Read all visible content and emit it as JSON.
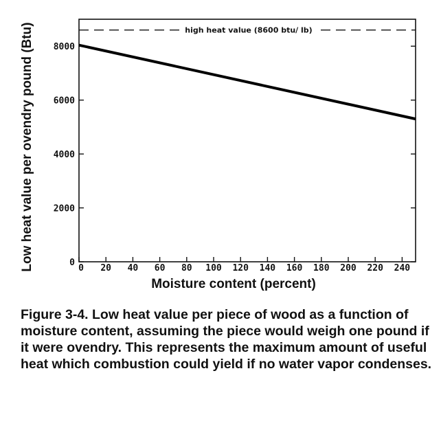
{
  "chart_data": {
    "type": "line",
    "xlabel": "Moisture content (percent)",
    "ylabel": "Low heat value per ovendry pound (Btu)",
    "xlim": [
      0,
      250
    ],
    "ylim": [
      0,
      9000
    ],
    "x_ticks": [
      0,
      20,
      40,
      60,
      80,
      100,
      120,
      140,
      160,
      180,
      200,
      220,
      240
    ],
    "y_ticks": [
      0,
      2000,
      4000,
      6000,
      8000
    ],
    "series": [
      {
        "x": [
          0,
          250
        ],
        "y": [
          8040,
          5300
        ]
      }
    ],
    "reference_line": {
      "y": 8600,
      "style": "dashed",
      "label": "high heat value (8600 btu/ lb)"
    },
    "grid": false
  },
  "caption": "Figure 3-4.  Low heat value per piece of wood as a function of moisture content, assuming the piece would weigh one pound if it were ovendry. This represents the maximum amount of useful heat which combustion could yield if no water vapor condenses."
}
